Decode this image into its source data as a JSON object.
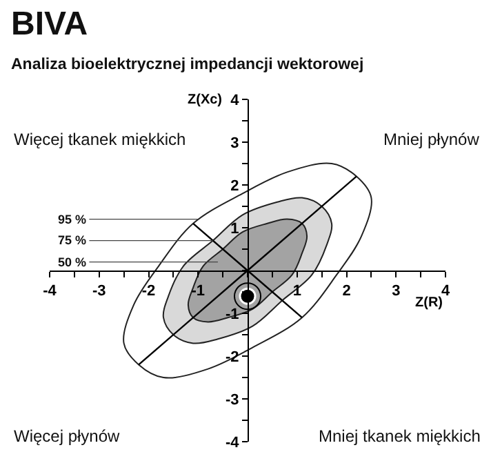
{
  "chart_data": {
    "type": "scatter",
    "title": "BIVA",
    "subtitle": "Analiza bioelektrycznej impedancji wektorowej",
    "xlabel": "Z(R)",
    "ylabel": "Z(Xc)",
    "xlim": [
      -4,
      4
    ],
    "ylim": [
      -4,
      4
    ],
    "xticks": [
      -4,
      {
        "value": -3.5,
        "label": null
      },
      -3,
      {
        "value": -2.5,
        "label": null
      },
      -2,
      {
        "value": -1.5,
        "label": null
      },
      -1,
      {
        "value": -0.5,
        "label": null
      },
      {
        "value": 0,
        "label": null
      },
      {
        "value": 0.5,
        "label": null
      },
      1,
      {
        "value": 1.5,
        "label": null
      },
      2,
      {
        "value": 2.5,
        "label": null
      },
      3,
      {
        "value": 3.5,
        "label": null
      },
      4
    ],
    "yticks": [
      -4,
      {
        "value": -3.5,
        "label": null
      },
      -3,
      {
        "value": -2.5,
        "label": null
      },
      -2,
      {
        "value": -1.5,
        "label": null
      },
      -1,
      {
        "value": -0.5,
        "label": null
      },
      {
        "value": 0,
        "label": null
      },
      {
        "value": 0.5,
        "label": null
      },
      1,
      {
        "value": 1.5,
        "label": null
      },
      2,
      {
        "value": 2.5,
        "label": null
      },
      3,
      {
        "value": 3.5,
        "label": null
      },
      4
    ],
    "series": [
      {
        "type": "area",
        "color": "#ffffff",
        "x": [
          2.2,
          1.7,
          0.8,
          -0.1,
          -1.1,
          -1.8,
          -2.3,
          -2.5,
          -2.2,
          -1.7,
          -0.8,
          0.1,
          1.1,
          1.8,
          2.3,
          2.5,
          2.2
        ],
        "values": [
          2.2,
          2.5,
          2.3,
          1.8,
          1.1,
          0.1,
          -0.8,
          -1.7,
          -2.2,
          -2.5,
          -2.3,
          -1.8,
          -1.1,
          -0.1,
          0.8,
          1.7,
          2.2
        ]
      },
      {
        "type": "area",
        "color": "#d9d9d9",
        "x": [
          1.5,
          1.1,
          0.6,
          -0.1,
          -0.7,
          -1.3,
          -1.6,
          -1.7,
          -1.5,
          -1.1,
          -0.6,
          0.1,
          0.7,
          1.3,
          1.6,
          1.7,
          1.5
        ],
        "values": [
          1.5,
          1.7,
          1.6,
          1.3,
          0.7,
          0.1,
          -0.6,
          -1.1,
          -1.5,
          -1.7,
          -1.6,
          -1.3,
          -0.7,
          -0.1,
          0.6,
          1.1,
          1.5
        ]
      },
      {
        "type": "area",
        "color": "#a3a3a3",
        "x": [
          1.1,
          0.8,
          0.4,
          -0.1,
          -0.5,
          -0.9,
          -1.1,
          -1.2,
          -1.1,
          -0.8,
          -0.4,
          0.1,
          0.5,
          0.9,
          1.1,
          1.2,
          1.1
        ],
        "values": [
          1.1,
          1.2,
          1.1,
          0.9,
          0.5,
          0.1,
          -0.4,
          -0.8,
          -1.1,
          -1.2,
          -1.1,
          -0.9,
          -0.5,
          -0.1,
          0.4,
          0.8,
          1.1
        ]
      },
      {
        "type": "line",
        "color": "#000000",
        "x": [
          -2.2,
          0,
          2.2
        ],
        "values": [
          -2.2,
          0,
          2.2
        ]
      },
      {
        "type": "line",
        "color": "#000000",
        "x": [
          -1.1,
          0,
          1.1
        ],
        "values": [
          1.1,
          0,
          -1.1
        ]
      },
      {
        "color": "#000000",
        "marker": "circle",
        "x": [
          0
        ],
        "values": [
          -0.6
        ]
      }
    ],
    "annotations": [
      "Więcej tkanek miękkich",
      "Mniej płynów",
      "Więcej płynów",
      "Mniej tkanek miękkich",
      {
        "text": "95 %",
        "x": -1.0,
        "y": 1.2
      },
      {
        "text": "75 %",
        "x": -0.7,
        "y": 0.7
      },
      {
        "text": "50 %",
        "x": -0.6,
        "y": 0.2
      }
    ]
  }
}
